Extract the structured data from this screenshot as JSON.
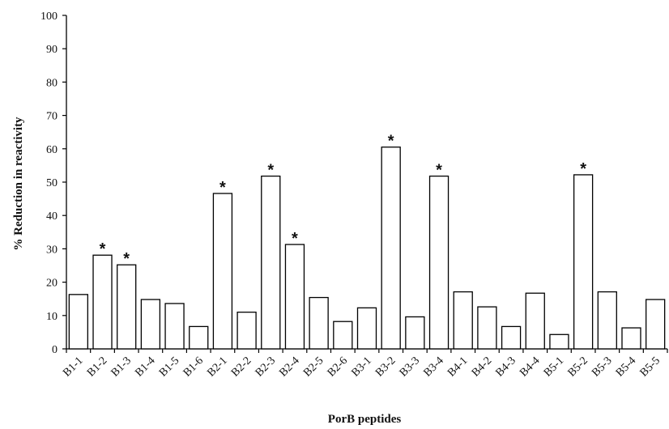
{
  "chart_data": {
    "type": "bar",
    "title": "",
    "xlabel": "PorB peptides",
    "ylabel": "% Reduction in reactivity",
    "ylim": [
      0,
      100
    ],
    "yticks": [
      0,
      10,
      20,
      30,
      40,
      50,
      60,
      70,
      80,
      90,
      100
    ],
    "grid": false,
    "categories": [
      "B1-1",
      "B1-2",
      "B1-3",
      "B1-4",
      "B1-5",
      "B1-6",
      "B2-1",
      "B2-2",
      "B2-3",
      "B2-4",
      "B2-5",
      "B2-6",
      "B3-1",
      "B3-2",
      "B3-3",
      "B3-4",
      "B4-1",
      "B4-2",
      "B4-3",
      "B4-4",
      "B5-1",
      "B5-2",
      "B5-3",
      "B5-4",
      "B5-5"
    ],
    "values": [
      16.3,
      28.1,
      25.2,
      14.8,
      13.6,
      6.7,
      46.6,
      11.0,
      51.8,
      31.3,
      15.4,
      8.2,
      12.3,
      60.5,
      9.6,
      51.8,
      17.1,
      12.6,
      6.7,
      16.7,
      4.3,
      52.2,
      17.1,
      6.3,
      14.8
    ],
    "significance_marker": "*",
    "significant": [
      "B1-2",
      "B1-3",
      "B2-1",
      "B2-3",
      "B2-4",
      "B3-2",
      "B3-4",
      "B5-2"
    ],
    "colors": {
      "bar_fill": "#ffffff",
      "bar_stroke": "#000000",
      "axis": "#000000"
    }
  }
}
